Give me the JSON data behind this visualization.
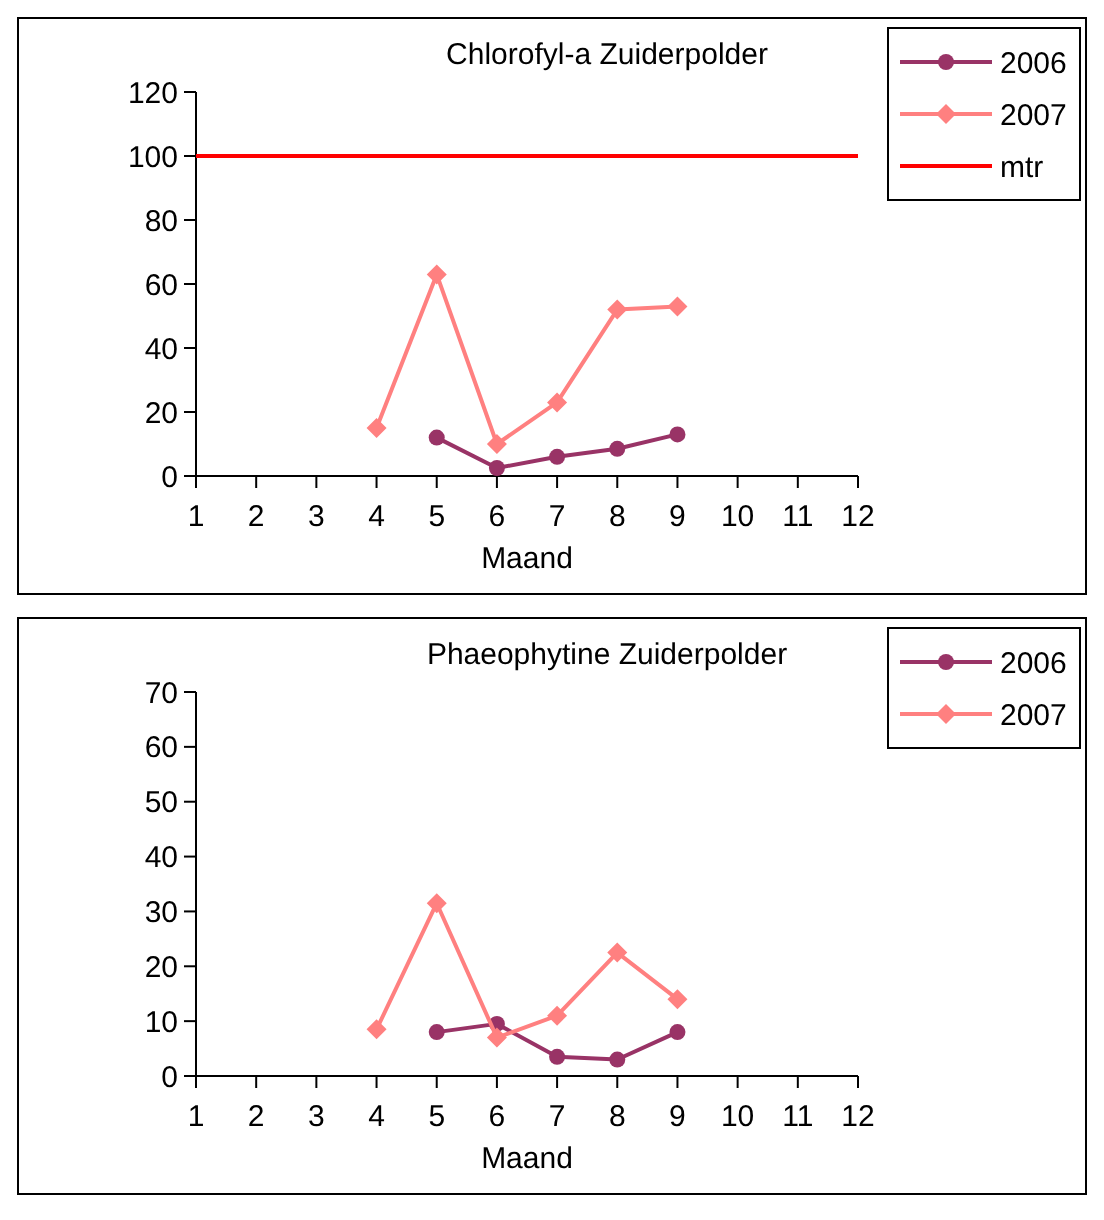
{
  "chart_data": [
    {
      "type": "line",
      "title": "Chlorofyl-a Zuiderpolder",
      "xlabel": "Maand",
      "xlim": [
        1,
        12
      ],
      "xticks": [
        1,
        2,
        3,
        4,
        5,
        6,
        7,
        8,
        9,
        10,
        11,
        12
      ],
      "ylim": [
        0,
        120
      ],
      "yticks": [
        0,
        20,
        40,
        60,
        80,
        100,
        120
      ],
      "legend": "right",
      "series": [
        {
          "name": "2006",
          "color": "#993366",
          "marker": "circle",
          "x": [
            5,
            6,
            7,
            8,
            9
          ],
          "values": [
            12,
            2.5,
            6,
            8.5,
            13
          ]
        },
        {
          "name": "2007",
          "color": "#ff8080",
          "marker": "diamond",
          "x": [
            4,
            5,
            6,
            7,
            8,
            9
          ],
          "values": [
            15,
            63,
            10,
            23,
            52,
            53
          ]
        },
        {
          "name": "mtr",
          "color": "#ff0000",
          "marker": "none",
          "x": [
            1,
            12
          ],
          "values": [
            100,
            100
          ]
        }
      ]
    },
    {
      "type": "line",
      "title": "Phaeophytine Zuiderpolder",
      "xlabel": "Maand",
      "xlim": [
        1,
        12
      ],
      "xticks": [
        1,
        2,
        3,
        4,
        5,
        6,
        7,
        8,
        9,
        10,
        11,
        12
      ],
      "ylim": [
        0,
        70
      ],
      "yticks": [
        0,
        10,
        20,
        30,
        40,
        50,
        60,
        70
      ],
      "legend": "right",
      "series": [
        {
          "name": "2006",
          "color": "#993366",
          "marker": "circle",
          "x": [
            5,
            6,
            7,
            8,
            9
          ],
          "values": [
            8,
            9.5,
            3.5,
            3,
            8
          ]
        },
        {
          "name": "2007",
          "color": "#ff8080",
          "marker": "diamond",
          "x": [
            4,
            5,
            6,
            7,
            8,
            9
          ],
          "values": [
            8.5,
            31.5,
            7,
            11,
            22.5,
            14
          ]
        }
      ]
    }
  ]
}
